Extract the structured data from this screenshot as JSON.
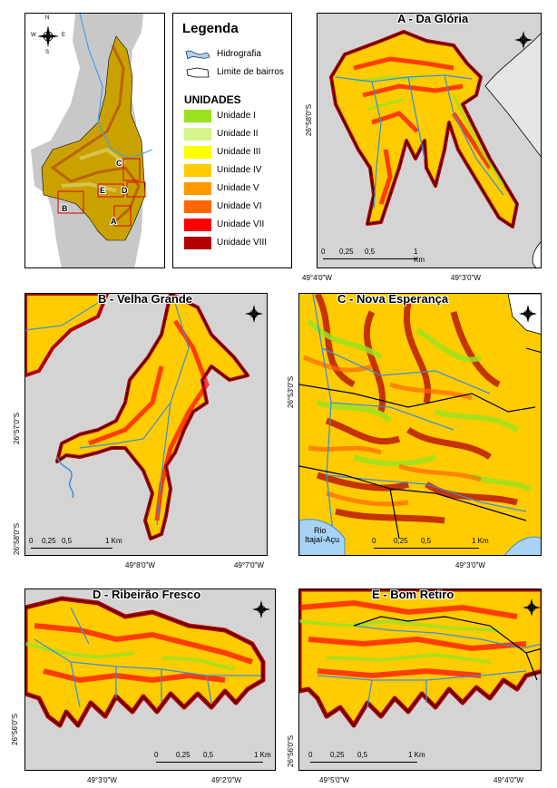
{
  "legend": {
    "title": "Legenda",
    "hydro_label": "Hidrografia",
    "limit_label": "Limite de bairros",
    "units_title": "UNIDADES",
    "units": [
      {
        "label": "Unidade I",
        "color": "#9be21f"
      },
      {
        "label": "Unidade II",
        "color": "#d6f58a"
      },
      {
        "label": "Unidade III",
        "color": "#ffff00"
      },
      {
        "label": "Unidade IV",
        "color": "#ffcc00"
      },
      {
        "label": "Unidade V",
        "color": "#ff9900"
      },
      {
        "label": "Unidade VI",
        "color": "#ff6600"
      },
      {
        "label": "Unidade VII",
        "color": "#ff0000"
      },
      {
        "label": "Unidade VIII",
        "color": "#b00000"
      }
    ],
    "hydro_color": "#7fb8e6"
  },
  "overview": {
    "labels": [
      "C",
      "E",
      "D",
      "B",
      "A"
    ]
  },
  "compass": {
    "n": "N",
    "s": "S",
    "e": "E",
    "w": "W"
  },
  "panels": {
    "a": {
      "title": "A - Da Glória",
      "lat": "26°58'0\"S",
      "lon_left": "49°4'0\"W",
      "lon_right": "49°3'0\"W",
      "scale": [
        "0",
        "0,25",
        "0,5",
        "1 Km"
      ]
    },
    "b": {
      "title": "B - Velha Grande",
      "lat1": "26°57'0\"S",
      "lat2": "26°58'0\"S",
      "lon_left": "49°8'0\"W",
      "lon_right": "49°7'0\"W",
      "scale": [
        "0",
        "0,25",
        "0,5",
        "1 Km"
      ]
    },
    "c": {
      "title": "C - Nova Esperança",
      "lat": "26°53'0\"S",
      "lon": "49°3'0\"W",
      "river": [
        "Rio",
        "Itajaí-Açu"
      ],
      "scale": [
        "0",
        "0,25",
        "0,5",
        "1 Km"
      ]
    },
    "d": {
      "title": "D - Ribeirão Fresco",
      "lat": "26°56'0\"S",
      "lon_left": "49°3'0\"W",
      "lon_right": "49°2'0\"W",
      "scale": [
        "0",
        "0,25",
        "0,5",
        "1 Km"
      ]
    },
    "e": {
      "title": "E - Bom Retiro",
      "lat": "26°56'0\"S",
      "lon_left": "49°5'0\"W",
      "lon_right": "49°4'0\"W",
      "scale": [
        "0",
        "0,25",
        "0,5",
        "1 Km"
      ]
    }
  }
}
